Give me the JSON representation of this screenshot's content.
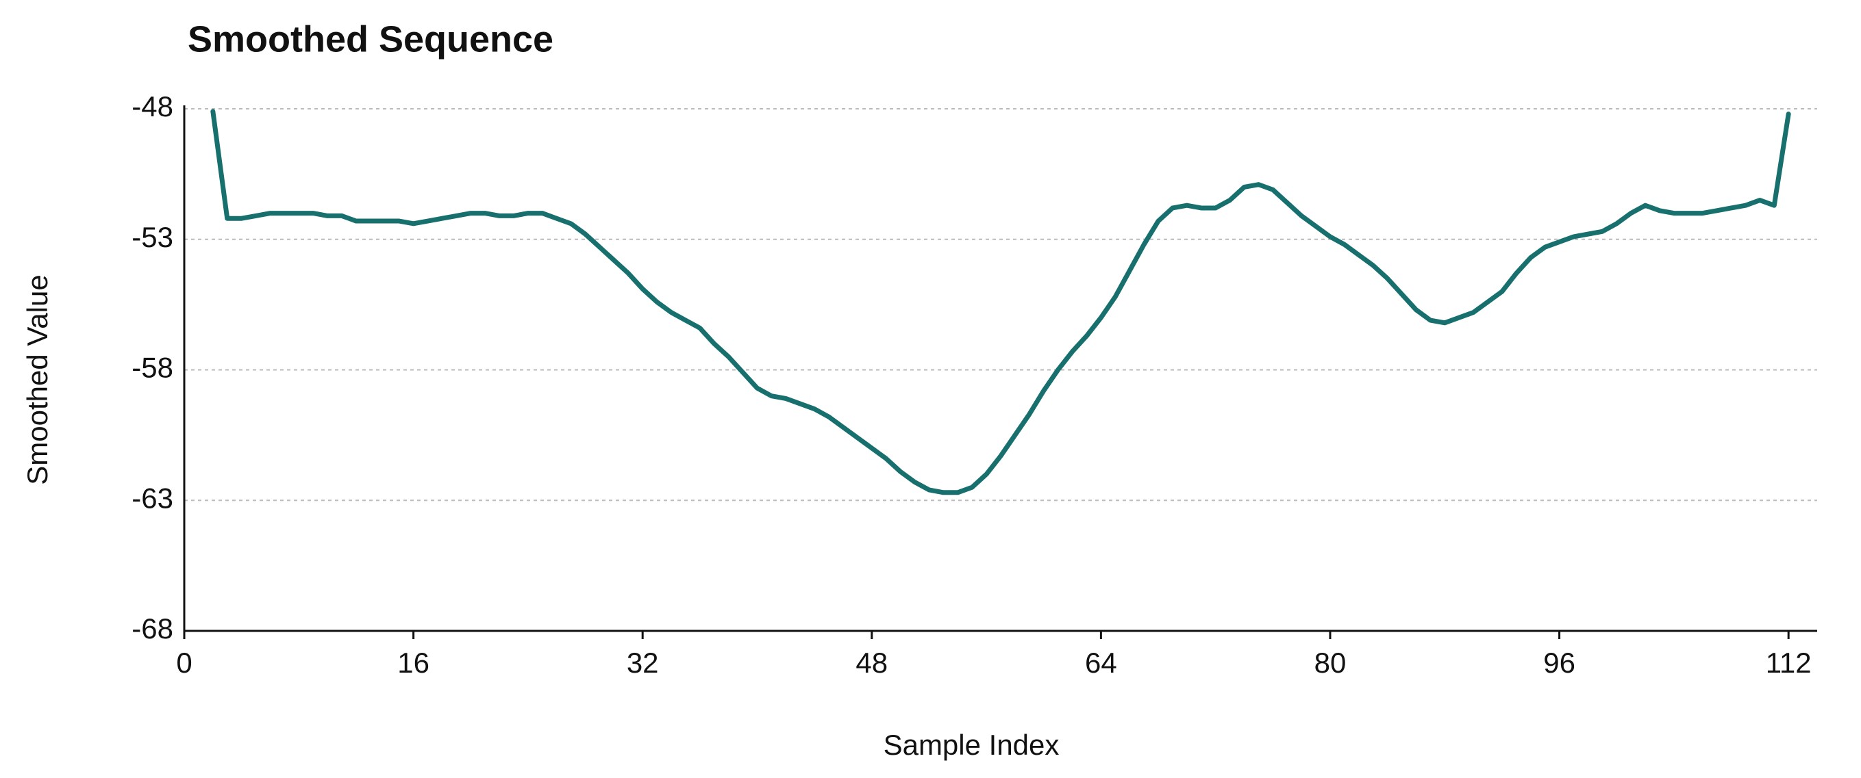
{
  "chart_data": {
    "type": "line",
    "title": "Smoothed Sequence",
    "xlabel": "Sample Index",
    "ylabel": "Smoothed Value",
    "x": [
      2,
      3,
      4,
      5,
      6,
      7,
      8,
      9,
      10,
      11,
      12,
      13,
      14,
      15,
      16,
      17,
      18,
      19,
      20,
      21,
      22,
      23,
      24,
      25,
      26,
      27,
      28,
      29,
      30,
      31,
      32,
      33,
      34,
      35,
      36,
      37,
      38,
      39,
      40,
      41,
      42,
      43,
      44,
      45,
      46,
      47,
      48,
      49,
      50,
      51,
      52,
      53,
      54,
      55,
      56,
      57,
      58,
      59,
      60,
      61,
      62,
      63,
      64,
      65,
      66,
      67,
      68,
      69,
      70,
      71,
      72,
      73,
      74,
      75,
      76,
      77,
      78,
      79,
      80,
      81,
      82,
      83,
      84,
      85,
      86,
      87,
      88,
      89,
      90,
      91,
      92,
      93,
      94,
      95,
      96,
      97,
      98,
      99,
      100,
      101,
      102,
      103,
      104,
      105,
      106,
      107,
      108,
      109,
      110,
      111,
      112
    ],
    "series": [
      {
        "name": "Smoothed Value",
        "color": "#17706e",
        "values": [
          -48.1,
          -52.2,
          -52.2,
          -52.1,
          -52.0,
          -52.0,
          -52.0,
          -52.0,
          -52.1,
          -52.1,
          -52.3,
          -52.3,
          -52.3,
          -52.3,
          -52.4,
          -52.3,
          -52.2,
          -52.1,
          -52.0,
          -52.0,
          -52.1,
          -52.1,
          -52.0,
          -52.0,
          -52.2,
          -52.4,
          -52.8,
          -53.3,
          -53.8,
          -54.3,
          -54.9,
          -55.4,
          -55.8,
          -56.1,
          -56.4,
          -57.0,
          -57.5,
          -58.1,
          -58.7,
          -59.0,
          -59.1,
          -59.3,
          -59.5,
          -59.8,
          -60.2,
          -60.6,
          -61.0,
          -61.4,
          -61.9,
          -62.3,
          -62.6,
          -62.7,
          -62.7,
          -62.5,
          -62.0,
          -61.3,
          -60.5,
          -59.7,
          -58.8,
          -58.0,
          -57.3,
          -56.7,
          -56.0,
          -55.2,
          -54.2,
          -53.2,
          -52.3,
          -51.8,
          -51.7,
          -51.8,
          -51.8,
          -51.5,
          -51.0,
          -50.9,
          -51.1,
          -51.6,
          -52.1,
          -52.5,
          -52.9,
          -53.2,
          -53.6,
          -54.0,
          -54.5,
          -55.1,
          -55.7,
          -56.1,
          -56.2,
          -56.0,
          -55.8,
          -55.4,
          -55.0,
          -54.3,
          -53.7,
          -53.3,
          -53.1,
          -52.9,
          -52.8,
          -52.7,
          -52.4,
          -52.0,
          -51.7,
          -51.9,
          -52.0,
          -52.0,
          -52.0,
          -51.9,
          -51.8,
          -51.7,
          -51.5,
          -51.7,
          -48.2
        ]
      }
    ],
    "xlim": [
      0,
      114
    ],
    "xticks": [
      0,
      16,
      32,
      48,
      64,
      80,
      96,
      112
    ],
    "ylim": [
      -68,
      -48
    ],
    "yticks": [
      -48,
      -53,
      -58,
      -63,
      -68
    ],
    "grid": true
  }
}
